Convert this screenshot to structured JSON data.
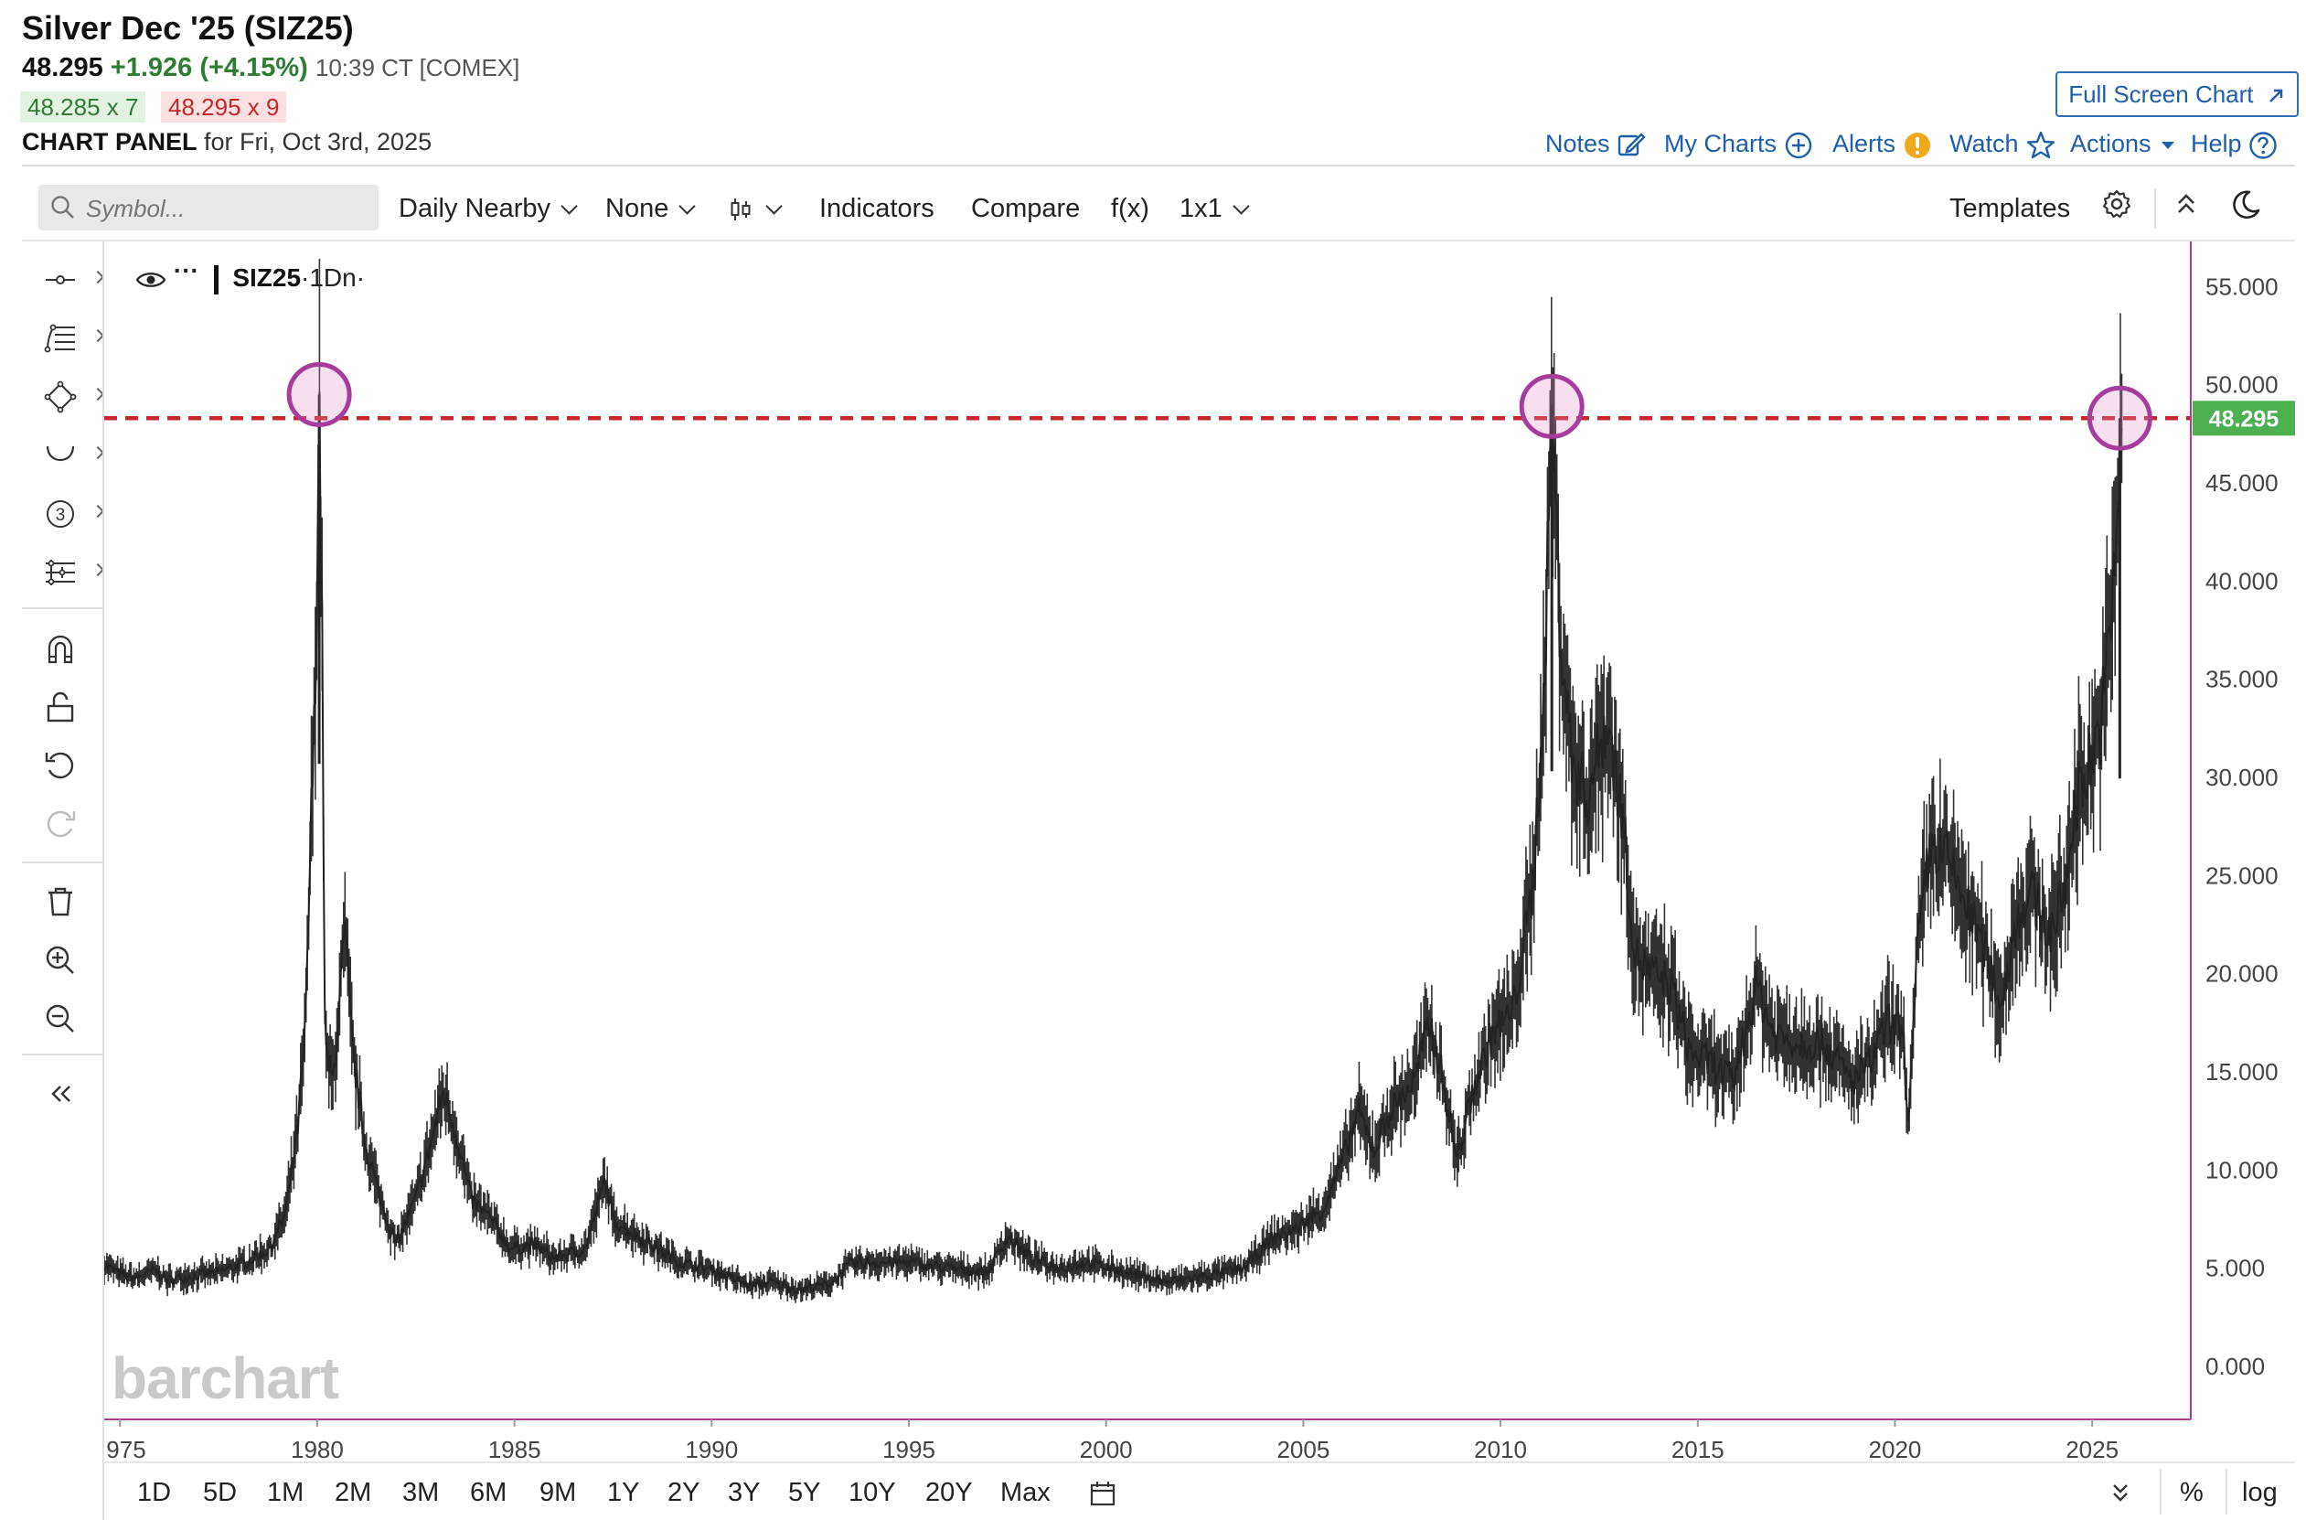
{
  "header": {
    "title": "Silver Dec '25 (SIZ25)",
    "last": "48.295",
    "change": "+1.926 (+4.15%)",
    "time_exchange": "10:39 CT [COMEX]",
    "bid": "48.285 x 7",
    "ask": "48.295 x 9",
    "panel_label": "CHART PANEL",
    "panel_date": "for Fri, Oct 3rd, 2025",
    "full_screen_label": "Full Screen Chart",
    "links": {
      "notes": "Notes",
      "my_charts": "My Charts",
      "alerts": "Alerts",
      "watch": "Watch",
      "actions": "Actions",
      "help": "Help"
    }
  },
  "toolbar": {
    "symbol_placeholder": "Symbol...",
    "frequency": "Daily Nearby",
    "overlay": "None",
    "chart_type_icon": "candlestick-icon",
    "indicators": "Indicators",
    "compare": "Compare",
    "fx": "f(x)",
    "layout": "1x1",
    "templates": "Templates"
  },
  "left_tools": [
    "crosshair-icon",
    "fibonacci-icon",
    "shape-icon",
    "arc-icon",
    "elliott-wave-icon",
    "pitchfork-icon",
    "magnet-icon",
    "unlock-icon",
    "undo-icon",
    "redo-icon",
    "trash-icon",
    "zoom-in-icon",
    "zoom-out-icon",
    "collapse-icon"
  ],
  "legend": {
    "symbol": "SIZ25",
    "interval": "·1Dn·"
  },
  "watermark": "barchart",
  "colors": {
    "accent_link": "#1d5fa8",
    "price_up": "#2e7d32",
    "price_down": "#c62828",
    "price_tag": "#4caf50",
    "resistance_line": "#c62828",
    "highlight_circle": "#a63c9c",
    "axis_line": "#b03a9a"
  },
  "chart_data": {
    "type": "line",
    "title": "",
    "xlabel": "",
    "ylabel": "",
    "xlim": [
      1974.6,
      2027.5
    ],
    "ylim": [
      -2.7,
      57.3
    ],
    "x_ticks": [
      "975",
      "1980",
      "1985",
      "1990",
      "1995",
      "2000",
      "2005",
      "2010",
      "2015",
      "2020",
      "2025"
    ],
    "y_ticks": [
      "55.000",
      "50.000",
      "45.000",
      "40.000",
      "35.000",
      "30.000",
      "25.000",
      "20.000",
      "15.000",
      "10.000",
      "5.000",
      "0.000"
    ],
    "current_price_label": "48.295",
    "horizontal_line": {
      "y": 48.295,
      "style": "dashed"
    },
    "highlights": [
      {
        "x": 1980.05,
        "y": 49.5
      },
      {
        "x": 2011.3,
        "y": 48.9
      },
      {
        "x": 2025.7,
        "y": 48.3
      }
    ],
    "series": [
      {
        "x": [
          1974.6,
          1975.0,
          1975.4,
          1975.9,
          1976.2,
          1976.8,
          1977.5,
          1978.2,
          1978.8,
          1979.2,
          1979.5,
          1979.7,
          1979.85,
          1979.95,
          1980.05,
          1980.12,
          1980.2,
          1980.4,
          1980.7,
          1980.9,
          1981.2,
          1981.6,
          1982.0,
          1982.5,
          1982.9,
          1983.2,
          1983.5,
          1983.9,
          1984.4,
          1984.9,
          1985.5,
          1986.0,
          1986.8,
          1987.3,
          1987.5,
          1988.0,
          1988.6,
          1989.2,
          1990.0,
          1991.0,
          1991.5,
          1992.2,
          1993.0,
          1993.5,
          1994.0,
          1995.0,
          1996.0,
          1997.0,
          1997.5,
          1998.1,
          1998.8,
          1999.5,
          2000.5,
          2001.5,
          2002.5,
          2003.5,
          2004.2,
          2004.8,
          2005.5,
          2006.0,
          2006.4,
          2006.8,
          2007.2,
          2007.8,
          2008.2,
          2008.5,
          2008.9,
          2009.3,
          2009.8,
          2010.3,
          2010.8,
          2011.1,
          2011.3,
          2011.5,
          2011.8,
          2012.2,
          2012.7,
          2013.1,
          2013.4,
          2013.8,
          2014.3,
          2014.8,
          2015.3,
          2015.9,
          2016.5,
          2016.9,
          2017.5,
          2018.2,
          2018.9,
          2019.4,
          2019.8,
          2020.2,
          2020.35,
          2020.6,
          2020.9,
          2021.3,
          2021.8,
          2022.3,
          2022.7,
          2023.1,
          2023.5,
          2023.9,
          2024.3,
          2024.6,
          2024.9,
          2025.2,
          2025.5,
          2025.75
        ],
        "values": [
          5.2,
          4.7,
          4.5,
          4.9,
          4.4,
          4.6,
          4.8,
          5.3,
          6.0,
          7.8,
          12.0,
          17.0,
          28.0,
          34.0,
          49.5,
          38.0,
          16.0,
          14.5,
          22.0,
          16.0,
          11.5,
          8.5,
          6.2,
          8.5,
          11.5,
          14.0,
          12.0,
          8.5,
          7.5,
          6.0,
          6.2,
          5.5,
          6.0,
          9.5,
          7.5,
          6.8,
          6.0,
          5.3,
          4.9,
          4.1,
          4.3,
          3.9,
          4.2,
          5.2,
          5.3,
          5.3,
          5.0,
          4.8,
          6.6,
          5.5,
          5.0,
          5.3,
          4.8,
          4.3,
          4.6,
          5.0,
          6.5,
          7.0,
          8.0,
          10.5,
          13.0,
          11.0,
          13.0,
          14.5,
          17.5,
          15.0,
          10.5,
          14.0,
          17.0,
          18.0,
          24.0,
          34.0,
          48.9,
          38.0,
          31.0,
          29.0,
          33.0,
          28.0,
          21.0,
          20.0,
          19.5,
          16.0,
          15.5,
          14.5,
          19.5,
          17.0,
          16.5,
          16.5,
          14.5,
          15.5,
          17.5,
          17.0,
          12.5,
          22.0,
          26.5,
          26.0,
          23.5,
          21.0,
          18.5,
          23.0,
          24.0,
          22.0,
          24.0,
          29.0,
          30.5,
          32.5,
          38.0,
          48.3
        ]
      }
    ]
  },
  "bottom": {
    "periods": [
      "1D",
      "5D",
      "1M",
      "2M",
      "3M",
      "6M",
      "9M",
      "1Y",
      "2Y",
      "3Y",
      "5Y",
      "10Y",
      "20Y",
      "Max"
    ],
    "percent": "%",
    "log": "log"
  }
}
